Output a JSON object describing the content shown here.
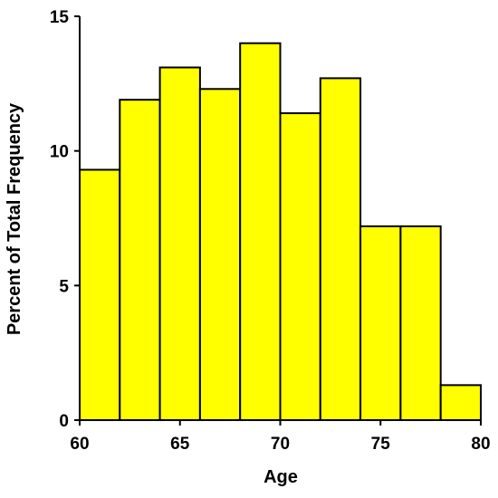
{
  "chart_data": {
    "type": "bar",
    "subtype": "histogram",
    "bin_edges": [
      60,
      62,
      64,
      66,
      68,
      70,
      72,
      74,
      76,
      78,
      80
    ],
    "values": [
      9.3,
      11.9,
      13.1,
      12.3,
      14.0,
      11.4,
      12.7,
      7.2,
      7.2,
      1.3
    ],
    "xlabel": "Age",
    "ylabel": "Percent of Total Frequency",
    "xlim": [
      60,
      80
    ],
    "ylim": [
      0,
      15
    ],
    "xticks": [
      "60",
      "65",
      "70",
      "75",
      "80"
    ],
    "yticks": [
      "0",
      "5",
      "10",
      "15"
    ],
    "grid": false,
    "legend": "none",
    "colors": {
      "bar_fill": "#ffff00",
      "bar_edge": "#000000",
      "axis": "#000000"
    }
  }
}
